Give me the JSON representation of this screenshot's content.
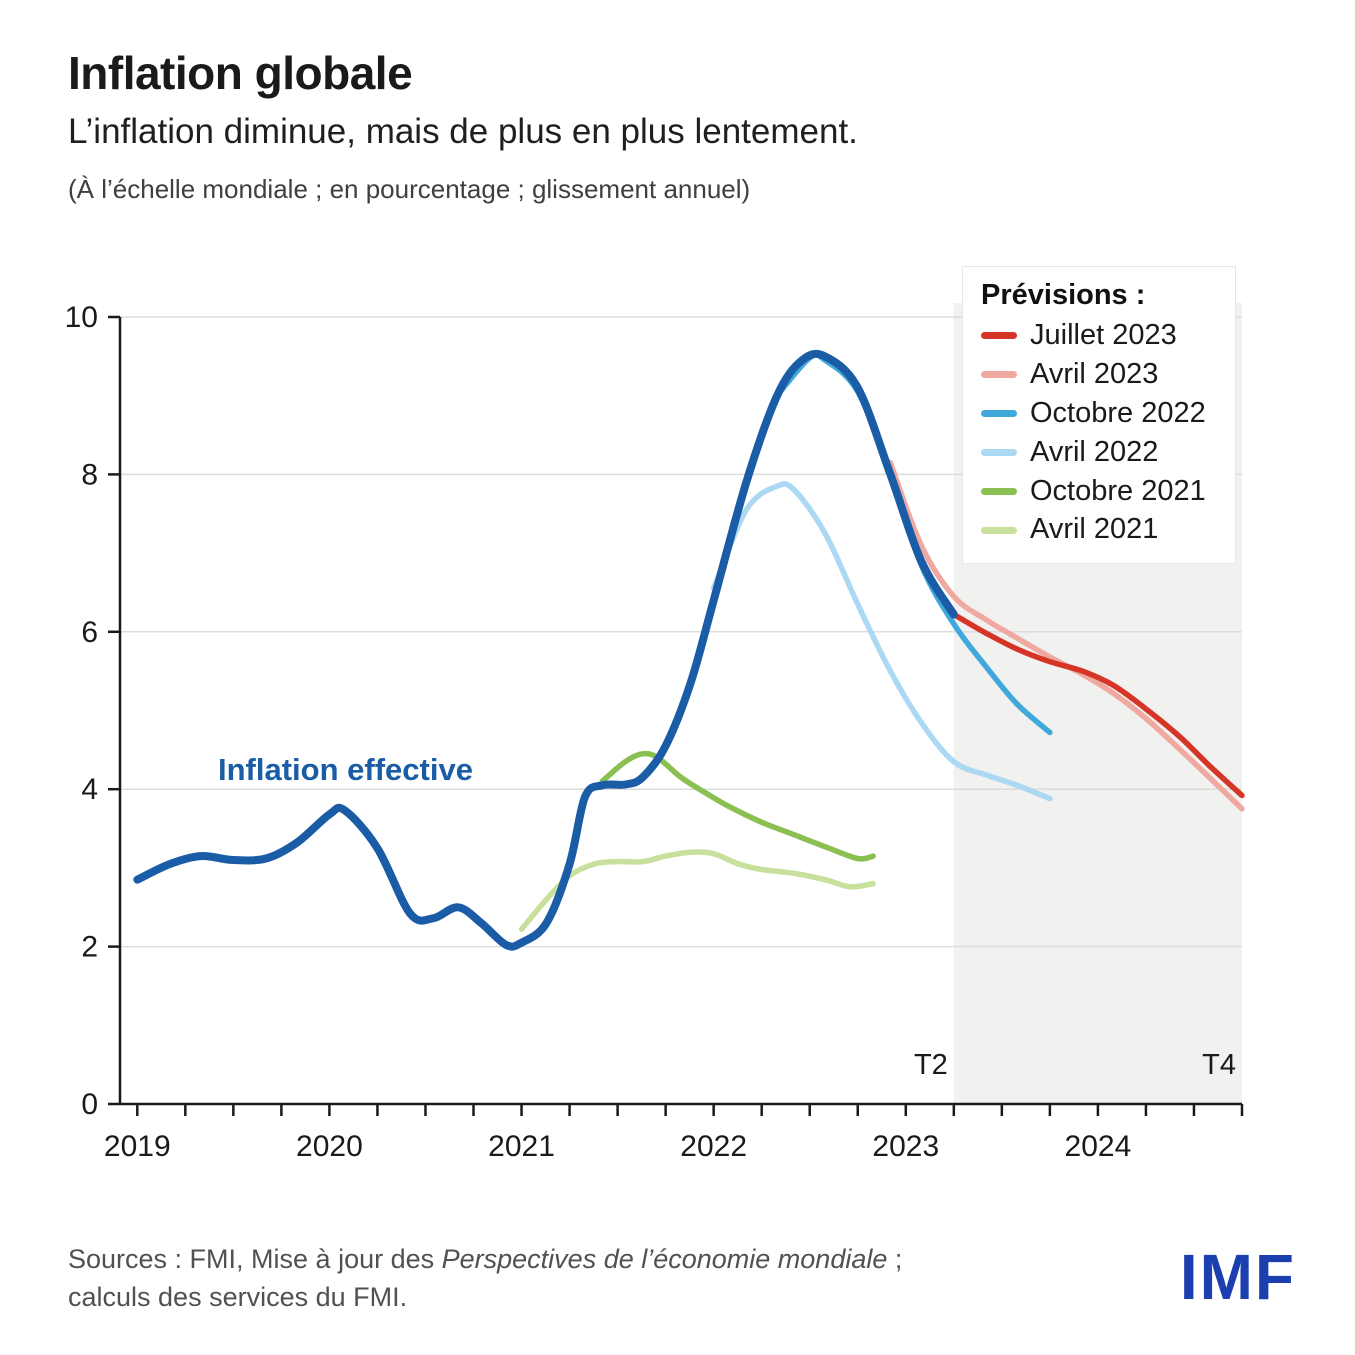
{
  "header": {
    "title": "Inflation globale",
    "subtitle": "L’inflation diminue, mais de plus en plus lentement.",
    "note": "(À l’échelle mondiale ; en pourcentage ; glissement annuel)"
  },
  "legend": {
    "title": "Prévisions :"
  },
  "chart_data": {
    "type": "line",
    "title": "Inflation globale",
    "xlabel": "",
    "ylabel": "pourcentage, glissement annuel",
    "y_axis": {
      "ticks": [
        0,
        2,
        4,
        6,
        8,
        10
      ],
      "range": [
        0,
        10
      ]
    },
    "x_axis": {
      "ticks": [
        2019,
        2020,
        2021,
        2022,
        2023,
        2024
      ],
      "range": [
        2018.91,
        2024.75
      ],
      "quarter_labels": [
        {
          "label": "T2",
          "x": 2023.25
        },
        {
          "label": "T4",
          "x": 2024.75
        }
      ]
    },
    "forecast_region": {
      "start": 2023.25,
      "end": 2024.75,
      "color": "#f1f1ef"
    },
    "grid_color": "#dcdcdc",
    "actual": {
      "name": "Inflation effective",
      "color": "#1a5ca6",
      "x": [
        2019.0,
        2019.17,
        2019.33,
        2019.5,
        2019.67,
        2019.83,
        2020.0,
        2020.08,
        2020.25,
        2020.42,
        2020.54,
        2020.67,
        2020.79,
        2020.92,
        2021.0,
        2021.13,
        2021.25,
        2021.33,
        2021.42,
        2021.54,
        2021.63,
        2021.75,
        2021.88,
        2022.0,
        2022.17,
        2022.33,
        2022.46,
        2022.58,
        2022.75,
        2022.92,
        2023.08,
        2023.25
      ],
      "y": [
        2.85,
        3.05,
        3.15,
        3.1,
        3.12,
        3.32,
        3.68,
        3.73,
        3.25,
        2.42,
        2.36,
        2.5,
        2.3,
        2.02,
        2.05,
        2.3,
        3.05,
        3.9,
        4.05,
        4.06,
        4.15,
        4.55,
        5.35,
        6.4,
        7.9,
        9.0,
        9.45,
        9.5,
        9.1,
        8.0,
        6.9,
        6.22
      ]
    },
    "forecasts": [
      {
        "name": "Juillet 2023",
        "color": "#d43527",
        "x": [
          2023.25,
          2023.42,
          2023.58,
          2023.75,
          2023.92,
          2024.08,
          2024.25,
          2024.42,
          2024.58,
          2024.75
        ],
        "y": [
          6.22,
          5.98,
          5.78,
          5.62,
          5.5,
          5.32,
          5.02,
          4.68,
          4.3,
          3.92
        ]
      },
      {
        "name": "Avril 2023",
        "color": "#f0a9a0",
        "x": [
          2022.92,
          2023.08,
          2023.25,
          2023.42,
          2023.58,
          2023.75,
          2023.92,
          2024.08,
          2024.25,
          2024.42,
          2024.58,
          2024.75
        ],
        "y": [
          8.15,
          7.1,
          6.45,
          6.15,
          5.92,
          5.68,
          5.46,
          5.22,
          4.9,
          4.52,
          4.15,
          3.75
        ]
      },
      {
        "name": "Octobre 2022",
        "color": "#41a8dc",
        "x": [
          2022.33,
          2022.5,
          2022.58,
          2022.75,
          2022.92,
          2023.08,
          2023.25,
          2023.42,
          2023.58,
          2023.75
        ],
        "y": [
          9.0,
          9.48,
          9.45,
          9.05,
          8.0,
          6.85,
          6.1,
          5.55,
          5.08,
          4.72
        ]
      },
      {
        "name": "Avril 2022",
        "color": "#abd8f2",
        "x": [
          2022.0,
          2022.17,
          2022.33,
          2022.42,
          2022.58,
          2022.75,
          2022.92,
          2023.08,
          2023.25,
          2023.42,
          2023.58,
          2023.75
        ],
        "y": [
          6.55,
          7.55,
          7.85,
          7.8,
          7.25,
          6.35,
          5.5,
          4.85,
          4.35,
          4.18,
          4.05,
          3.88
        ]
      },
      {
        "name": "Octobre 2021",
        "color": "#8abf52",
        "x": [
          2021.42,
          2021.54,
          2021.63,
          2021.71,
          2021.83,
          2021.96,
          2022.08,
          2022.25,
          2022.42,
          2022.58,
          2022.75,
          2022.83
        ],
        "y": [
          4.1,
          4.35,
          4.45,
          4.4,
          4.15,
          3.95,
          3.78,
          3.58,
          3.42,
          3.27,
          3.12,
          3.15
        ]
      },
      {
        "name": "Avril 2021",
        "color": "#c7e09c",
        "x": [
          2021.0,
          2021.13,
          2021.25,
          2021.38,
          2021.5,
          2021.63,
          2021.75,
          2021.88,
          2022.0,
          2022.13,
          2022.25,
          2022.42,
          2022.58,
          2022.71,
          2022.83
        ],
        "y": [
          2.22,
          2.6,
          2.9,
          3.05,
          3.08,
          3.08,
          3.15,
          3.2,
          3.18,
          3.05,
          2.98,
          2.93,
          2.85,
          2.76,
          2.8
        ]
      }
    ]
  },
  "footer": {
    "sources_prefix": "Sources : FMI, Mise à jour des ",
    "sources_italic": "Perspectives de l’économie mondiale",
    "sources_suffix": " ;",
    "sources_line2": "calculs des services du FMI.",
    "logo": "IMF"
  }
}
